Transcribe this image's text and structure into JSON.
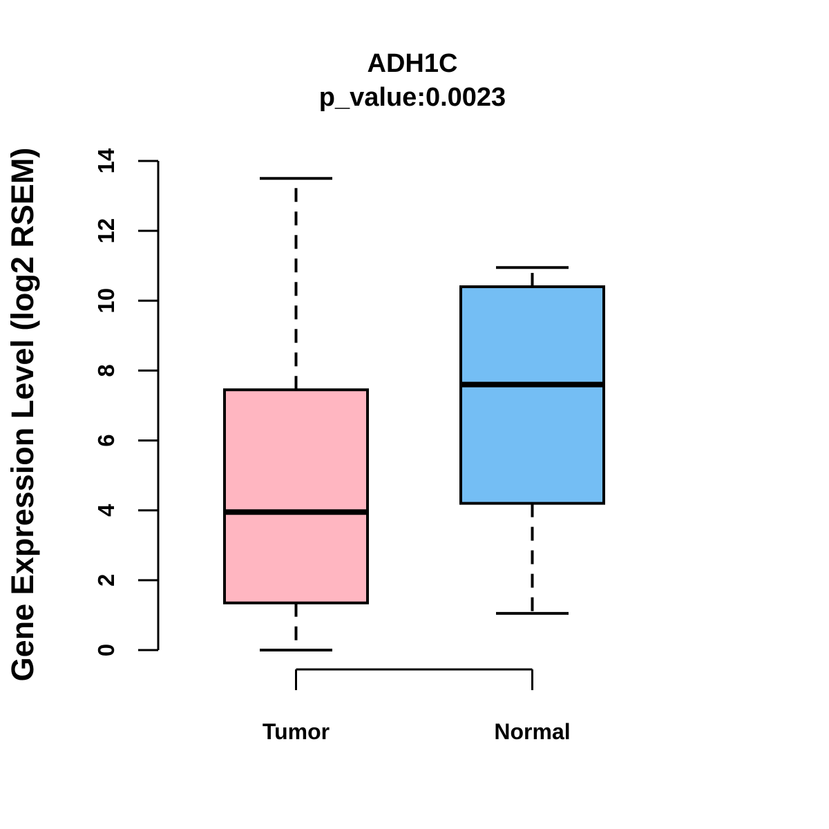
{
  "title": "ADH1C",
  "subtitle": "p_value:0.0023",
  "p_value_text": "p_value:0.0023",
  "colors": {
    "tumor_fill": "#FFB6C1",
    "normal_fill": "#74BEF4",
    "stroke": "#000000",
    "background": "#FFFFFF"
  },
  "chart_data": {
    "type": "boxplot",
    "title": "ADH1C",
    "subtitle": "p_value:0.0023",
    "gene": "ADH1C",
    "p_value": 0.0023,
    "xlabel": "",
    "ylabel": "Gene Expression Level (log2 RSEM)",
    "ylim": [
      0,
      14
    ],
    "yticks": [
      0,
      2,
      4,
      6,
      8,
      10,
      12,
      14
    ],
    "grid": false,
    "legend": "none",
    "categories": [
      "Tumor",
      "Normal"
    ],
    "series": [
      {
        "name": "Tumor",
        "color": "#FFB6C1",
        "whisker_low": 0.0,
        "q1": 1.35,
        "median": 3.95,
        "q3": 7.45,
        "whisker_high": 13.5
      },
      {
        "name": "Normal",
        "color": "#74BEF4",
        "whisker_low": 1.05,
        "q1": 4.2,
        "median": 7.6,
        "q3": 10.4,
        "whisker_high": 10.95
      }
    ]
  }
}
